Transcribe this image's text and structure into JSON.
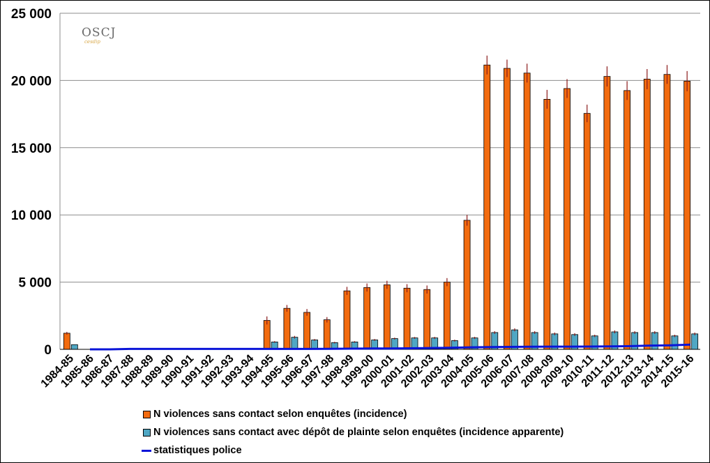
{
  "chart_data": {
    "type": "bar",
    "categories": [
      "1984-85",
      "1985-86",
      "1986-87",
      "1987-88",
      "1988-89",
      "1989-90",
      "1990-91",
      "1991-92",
      "1992-93",
      "1993-94",
      "1994-95",
      "1995-96",
      "1996-97",
      "1997-98",
      "1998-99",
      "1999-00",
      "2000-01",
      "2001-02",
      "2002-03",
      "2003-04",
      "2004-05",
      "2005-06",
      "2006-07",
      "2007-08",
      "2008-09",
      "2009-10",
      "2010-11",
      "2011-12",
      "2012-13",
      "2013-14",
      "2014-15",
      "2015-16"
    ],
    "series": [
      {
        "name": "N violences sans contact selon enquêtes (incidence)",
        "kind": "bar",
        "color": "#f26b0f",
        "values": [
          1200,
          null,
          null,
          null,
          null,
          null,
          null,
          null,
          null,
          null,
          2150,
          3050,
          2750,
          2200,
          4350,
          4600,
          4800,
          4550,
          4450,
          5000,
          9600,
          21150,
          20900,
          20550,
          18600,
          19400,
          17550,
          20300,
          19250,
          20100,
          20450,
          19950
        ],
        "error": [
          100,
          null,
          null,
          null,
          null,
          null,
          null,
          null,
          null,
          null,
          300,
          250,
          250,
          200,
          300,
          300,
          300,
          300,
          300,
          300,
          400,
          700,
          650,
          700,
          700,
          700,
          650,
          750,
          700,
          750,
          700,
          750
        ]
      },
      {
        "name": "N violences sans contact avec dépôt de plainte selon enquêtes (incidence apparente)",
        "kind": "bar",
        "color": "#4fa7c4",
        "values": [
          350,
          null,
          null,
          null,
          null,
          null,
          null,
          null,
          null,
          null,
          550,
          900,
          700,
          500,
          550,
          700,
          800,
          850,
          850,
          650,
          850,
          1250,
          1450,
          1250,
          1150,
          1100,
          1000,
          1300,
          1250,
          1250,
          1000,
          1150
        ],
        "error": [
          null,
          null,
          null,
          null,
          null,
          null,
          null,
          null,
          null,
          null,
          60,
          100,
          70,
          60,
          60,
          70,
          70,
          70,
          80,
          70,
          80,
          100,
          110,
          100,
          100,
          100,
          90,
          110,
          100,
          100,
          90,
          100
        ]
      },
      {
        "name": "statistiques police",
        "kind": "line",
        "color": "#0a14d8",
        "values": [
          null,
          0,
          0,
          30,
          30,
          30,
          30,
          30,
          30,
          30,
          30,
          30,
          30,
          40,
          50,
          60,
          70,
          80,
          100,
          120,
          150,
          170,
          180,
          190,
          200,
          200,
          210,
          220,
          240,
          280,
          300,
          350
        ]
      }
    ],
    "yticks": [
      0,
      5000,
      10000,
      15000,
      20000,
      25000
    ],
    "ytick_labels": [
      "0",
      "5 000",
      "10 000",
      "15 000",
      "20 000",
      "25 000"
    ],
    "ylim": [
      0,
      25000
    ],
    "grid": true,
    "legend_position": "bottom",
    "title": "",
    "xlabel": "",
    "ylabel": ""
  },
  "logo": {
    "text": "OSCJ",
    "subtext": "cesdip"
  }
}
